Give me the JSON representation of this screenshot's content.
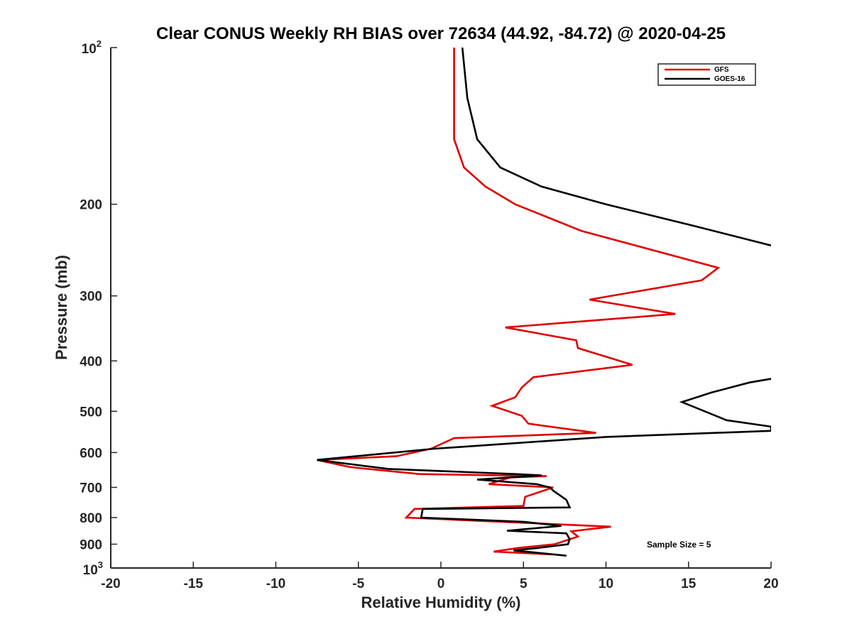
{
  "chart_data": {
    "type": "line",
    "title": "Clear CONUS Weekly RH BIAS over 72634 (44.92, -84.72) @ 2020-04-25",
    "xlabel": "Relative Humidity (%)",
    "ylabel": "Pressure (mb)",
    "xlim": [
      -20,
      20
    ],
    "ylim": [
      100,
      1000
    ],
    "yscale": "log",
    "yreversed": true,
    "grid": false,
    "x_ticks": [
      -20,
      -15,
      -10,
      -5,
      0,
      5,
      10,
      15,
      20
    ],
    "x_tick_labels": [
      "-20",
      "-15",
      "-10",
      "-5",
      "0",
      "5",
      "10",
      "15",
      "20"
    ],
    "y_ticks": [
      200,
      300,
      400,
      500,
      600,
      700,
      800,
      900
    ],
    "y_tick_labels": [
      "200",
      "300",
      "400",
      "500",
      "600",
      "700",
      "800",
      "900"
    ],
    "y_min_label": {
      "base": "10",
      "exp": "2"
    },
    "y_max_label": {
      "base": "10",
      "exp": "3"
    },
    "legend_position": "top-right",
    "annotation": "Sample Size = 5",
    "series": [
      {
        "name": "GFS",
        "color": "#e00000",
        "points": [
          [
            0.8,
            100
          ],
          [
            0.8,
            125
          ],
          [
            0.8,
            150
          ],
          [
            1.4,
            170
          ],
          [
            2.7,
            185
          ],
          [
            4.5,
            200
          ],
          [
            8.5,
            225
          ],
          [
            16.8,
            265
          ],
          [
            15.8,
            280
          ],
          [
            9.0,
            305
          ],
          [
            14.2,
            325
          ],
          [
            3.9,
            345
          ],
          [
            8.2,
            365
          ],
          [
            8.3,
            378
          ],
          [
            11.6,
            407
          ],
          [
            5.6,
            430
          ],
          [
            4.9,
            450
          ],
          [
            4.5,
            470
          ],
          [
            3.1,
            488
          ],
          [
            4.9,
            510
          ],
          [
            5.3,
            528
          ],
          [
            9.4,
            550
          ],
          [
            0.8,
            563
          ],
          [
            -0.6,
            590
          ],
          [
            -2.7,
            610
          ],
          [
            -7.5,
            620
          ],
          [
            -5.5,
            640
          ],
          [
            -1.3,
            660
          ],
          [
            6.4,
            666
          ],
          [
            4.2,
            670
          ],
          [
            2.9,
            690
          ],
          [
            6.8,
            700
          ],
          [
            5.1,
            730
          ],
          [
            5.0,
            760
          ],
          [
            -1.6,
            770
          ],
          [
            -2.1,
            800
          ],
          [
            10.3,
            833
          ],
          [
            7.9,
            850
          ],
          [
            8.3,
            870
          ],
          [
            6.9,
            900
          ],
          [
            4.7,
            915
          ],
          [
            3.2,
            930
          ],
          [
            6.8,
            942
          ]
        ]
      },
      {
        "name": "GOES-16",
        "color": "#000000",
        "points": [
          [
            1.3,
            100
          ],
          [
            1.6,
            125
          ],
          [
            2.2,
            150
          ],
          [
            3.6,
            170
          ],
          [
            6.1,
            185
          ],
          [
            10.0,
            200
          ],
          [
            15.3,
            220
          ],
          [
            20.0,
            240
          ],
          [
            22.0,
            258
          ],
          [
            24.0,
            280
          ],
          [
            22.0,
            420
          ],
          [
            20.0,
            433
          ],
          [
            18.7,
            440
          ],
          [
            16.4,
            460
          ],
          [
            14.6,
            480
          ],
          [
            17.3,
            520
          ],
          [
            20.0,
            535
          ],
          [
            20.0,
            545
          ],
          [
            10.0,
            560
          ],
          [
            -0.4,
            590
          ],
          [
            -7.5,
            620
          ],
          [
            -3.2,
            645
          ],
          [
            4.5,
            660
          ],
          [
            6.1,
            664
          ],
          [
            2.2,
            676
          ],
          [
            5.8,
            690
          ],
          [
            6.6,
            700
          ],
          [
            6.8,
            710
          ],
          [
            7.6,
            740
          ],
          [
            7.8,
            765
          ],
          [
            -1.1,
            770
          ],
          [
            -1.2,
            800
          ],
          [
            5.0,
            815
          ],
          [
            7.3,
            830
          ],
          [
            4.0,
            848
          ],
          [
            7.6,
            858
          ],
          [
            7.8,
            880
          ],
          [
            7.7,
            900
          ],
          [
            5.9,
            915
          ],
          [
            4.4,
            925
          ],
          [
            7.6,
            947
          ]
        ]
      }
    ]
  }
}
